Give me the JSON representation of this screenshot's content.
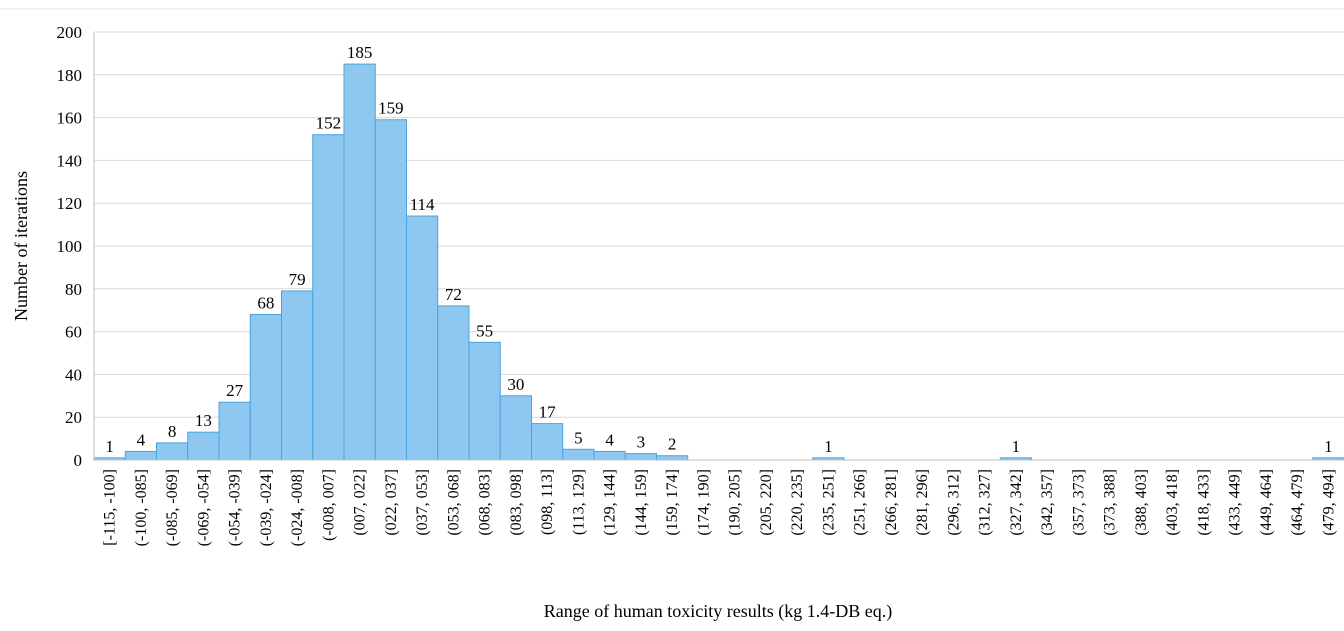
{
  "chart_data": {
    "type": "bar",
    "title": "",
    "xlabel": "Range of human toxicity results (kg 1.4-DB eq.)",
    "ylabel": "Number of iterations",
    "ylim": [
      0,
      200
    ],
    "yticks": [
      0,
      20,
      40,
      60,
      80,
      100,
      120,
      140,
      160,
      180,
      200
    ],
    "grid": true,
    "legend": "none",
    "colors": {
      "bar_fill": "#8ec8f0",
      "bar_stroke": "#4aa3dc",
      "grid": "#d9d9d9",
      "axis": "#bfbfbf"
    },
    "categories": [
      "[-115, -100]",
      "(-100, -085]",
      "(-085, -069]",
      "(-069, -054]",
      "(-054, -039]",
      "(-039, -024]",
      "(-024, -008]",
      "(-008, 007]",
      "(007, 022]",
      "(022, 037]",
      "(037, 053]",
      "(053, 068]",
      "(068, 083]",
      "(083, 098]",
      "(098, 113]",
      "(113, 129]",
      "(129, 144]",
      "(144, 159]",
      "(159, 174]",
      "(174, 190]",
      "(190, 205]",
      "(205, 220]",
      "(220, 235]",
      "(235, 251]",
      "(251, 266]",
      "(266, 281]",
      "(281, 296]",
      "(296, 312]",
      "(312, 327]",
      "(327, 342]",
      "(342, 357]",
      "(357, 373]",
      "(373, 388]",
      "(388, 403]",
      "(403, 418]",
      "(418, 433]",
      "(433, 449]",
      "(449, 464]",
      "(464, 479]",
      "(479, 494]"
    ],
    "values": [
      1,
      4,
      8,
      13,
      27,
      68,
      79,
      152,
      185,
      159,
      114,
      72,
      55,
      30,
      17,
      5,
      4,
      3,
      2,
      0,
      0,
      0,
      0,
      1,
      0,
      0,
      0,
      0,
      0,
      1,
      0,
      0,
      0,
      0,
      0,
      0,
      0,
      0,
      0,
      1
    ],
    "data_labels": [
      "1",
      "4",
      "8",
      "13",
      "27",
      "68",
      "79",
      "152",
      "185",
      "159",
      "114",
      "72",
      "55",
      "30",
      "17",
      "5",
      "4",
      "3",
      "2",
      "",
      "",
      "",
      "",
      "1",
      "",
      "",
      "",
      "",
      "",
      "1",
      "",
      "",
      "",
      "",
      "",
      "",
      "",
      "",
      "",
      "1"
    ]
  }
}
